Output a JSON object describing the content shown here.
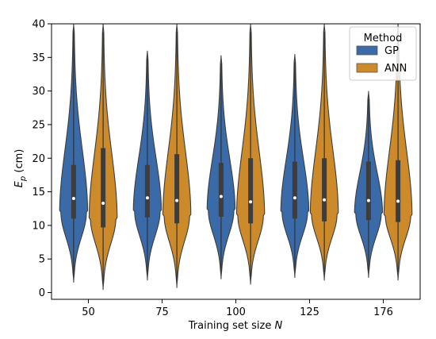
{
  "chart_data": {
    "type": "violin",
    "xlabel_prefix": "Training set size ",
    "xlabel_var": "N",
    "ylabel_var": "E",
    "ylabel_sub": "p",
    "ylabel_unit": " (cm)",
    "categories": [
      "50",
      "75",
      "100",
      "125",
      "176"
    ],
    "ylim": [
      -1,
      40
    ],
    "yticks": [
      0,
      5,
      10,
      15,
      20,
      25,
      30,
      35,
      40
    ],
    "legend": {
      "title": "Method",
      "position": "top-right",
      "entries": [
        {
          "name": "GP",
          "color": "#3a6aa7"
        },
        {
          "name": "ANN",
          "color": "#cc8a2a"
        }
      ]
    },
    "series": [
      {
        "name": "GP",
        "color": "#3a6aa7",
        "median": [
          14.0,
          14.1,
          14.3,
          14.1,
          13.7
        ],
        "q1": [
          11.0,
          11.2,
          11.3,
          11.0,
          10.8
        ],
        "q3": [
          19.0,
          19.0,
          19.3,
          19.5,
          19.5
        ],
        "min": [
          1.5,
          1.8,
          2.0,
          2.2,
          2.2
        ],
        "max": [
          40.0,
          36.0,
          35.3,
          35.5,
          30.0
        ]
      },
      {
        "name": "ANN",
        "color": "#cc8a2a",
        "median": [
          13.3,
          13.7,
          13.5,
          13.8,
          13.6
        ],
        "q1": [
          9.7,
          10.3,
          10.3,
          10.6,
          10.5
        ],
        "q3": [
          21.5,
          20.6,
          20.0,
          20.0,
          19.7
        ],
        "min": [
          0.4,
          0.7,
          1.2,
          1.8,
          1.8
        ],
        "max": [
          40.0,
          40.0,
          40.0,
          40.0,
          40.0
        ]
      }
    ]
  }
}
